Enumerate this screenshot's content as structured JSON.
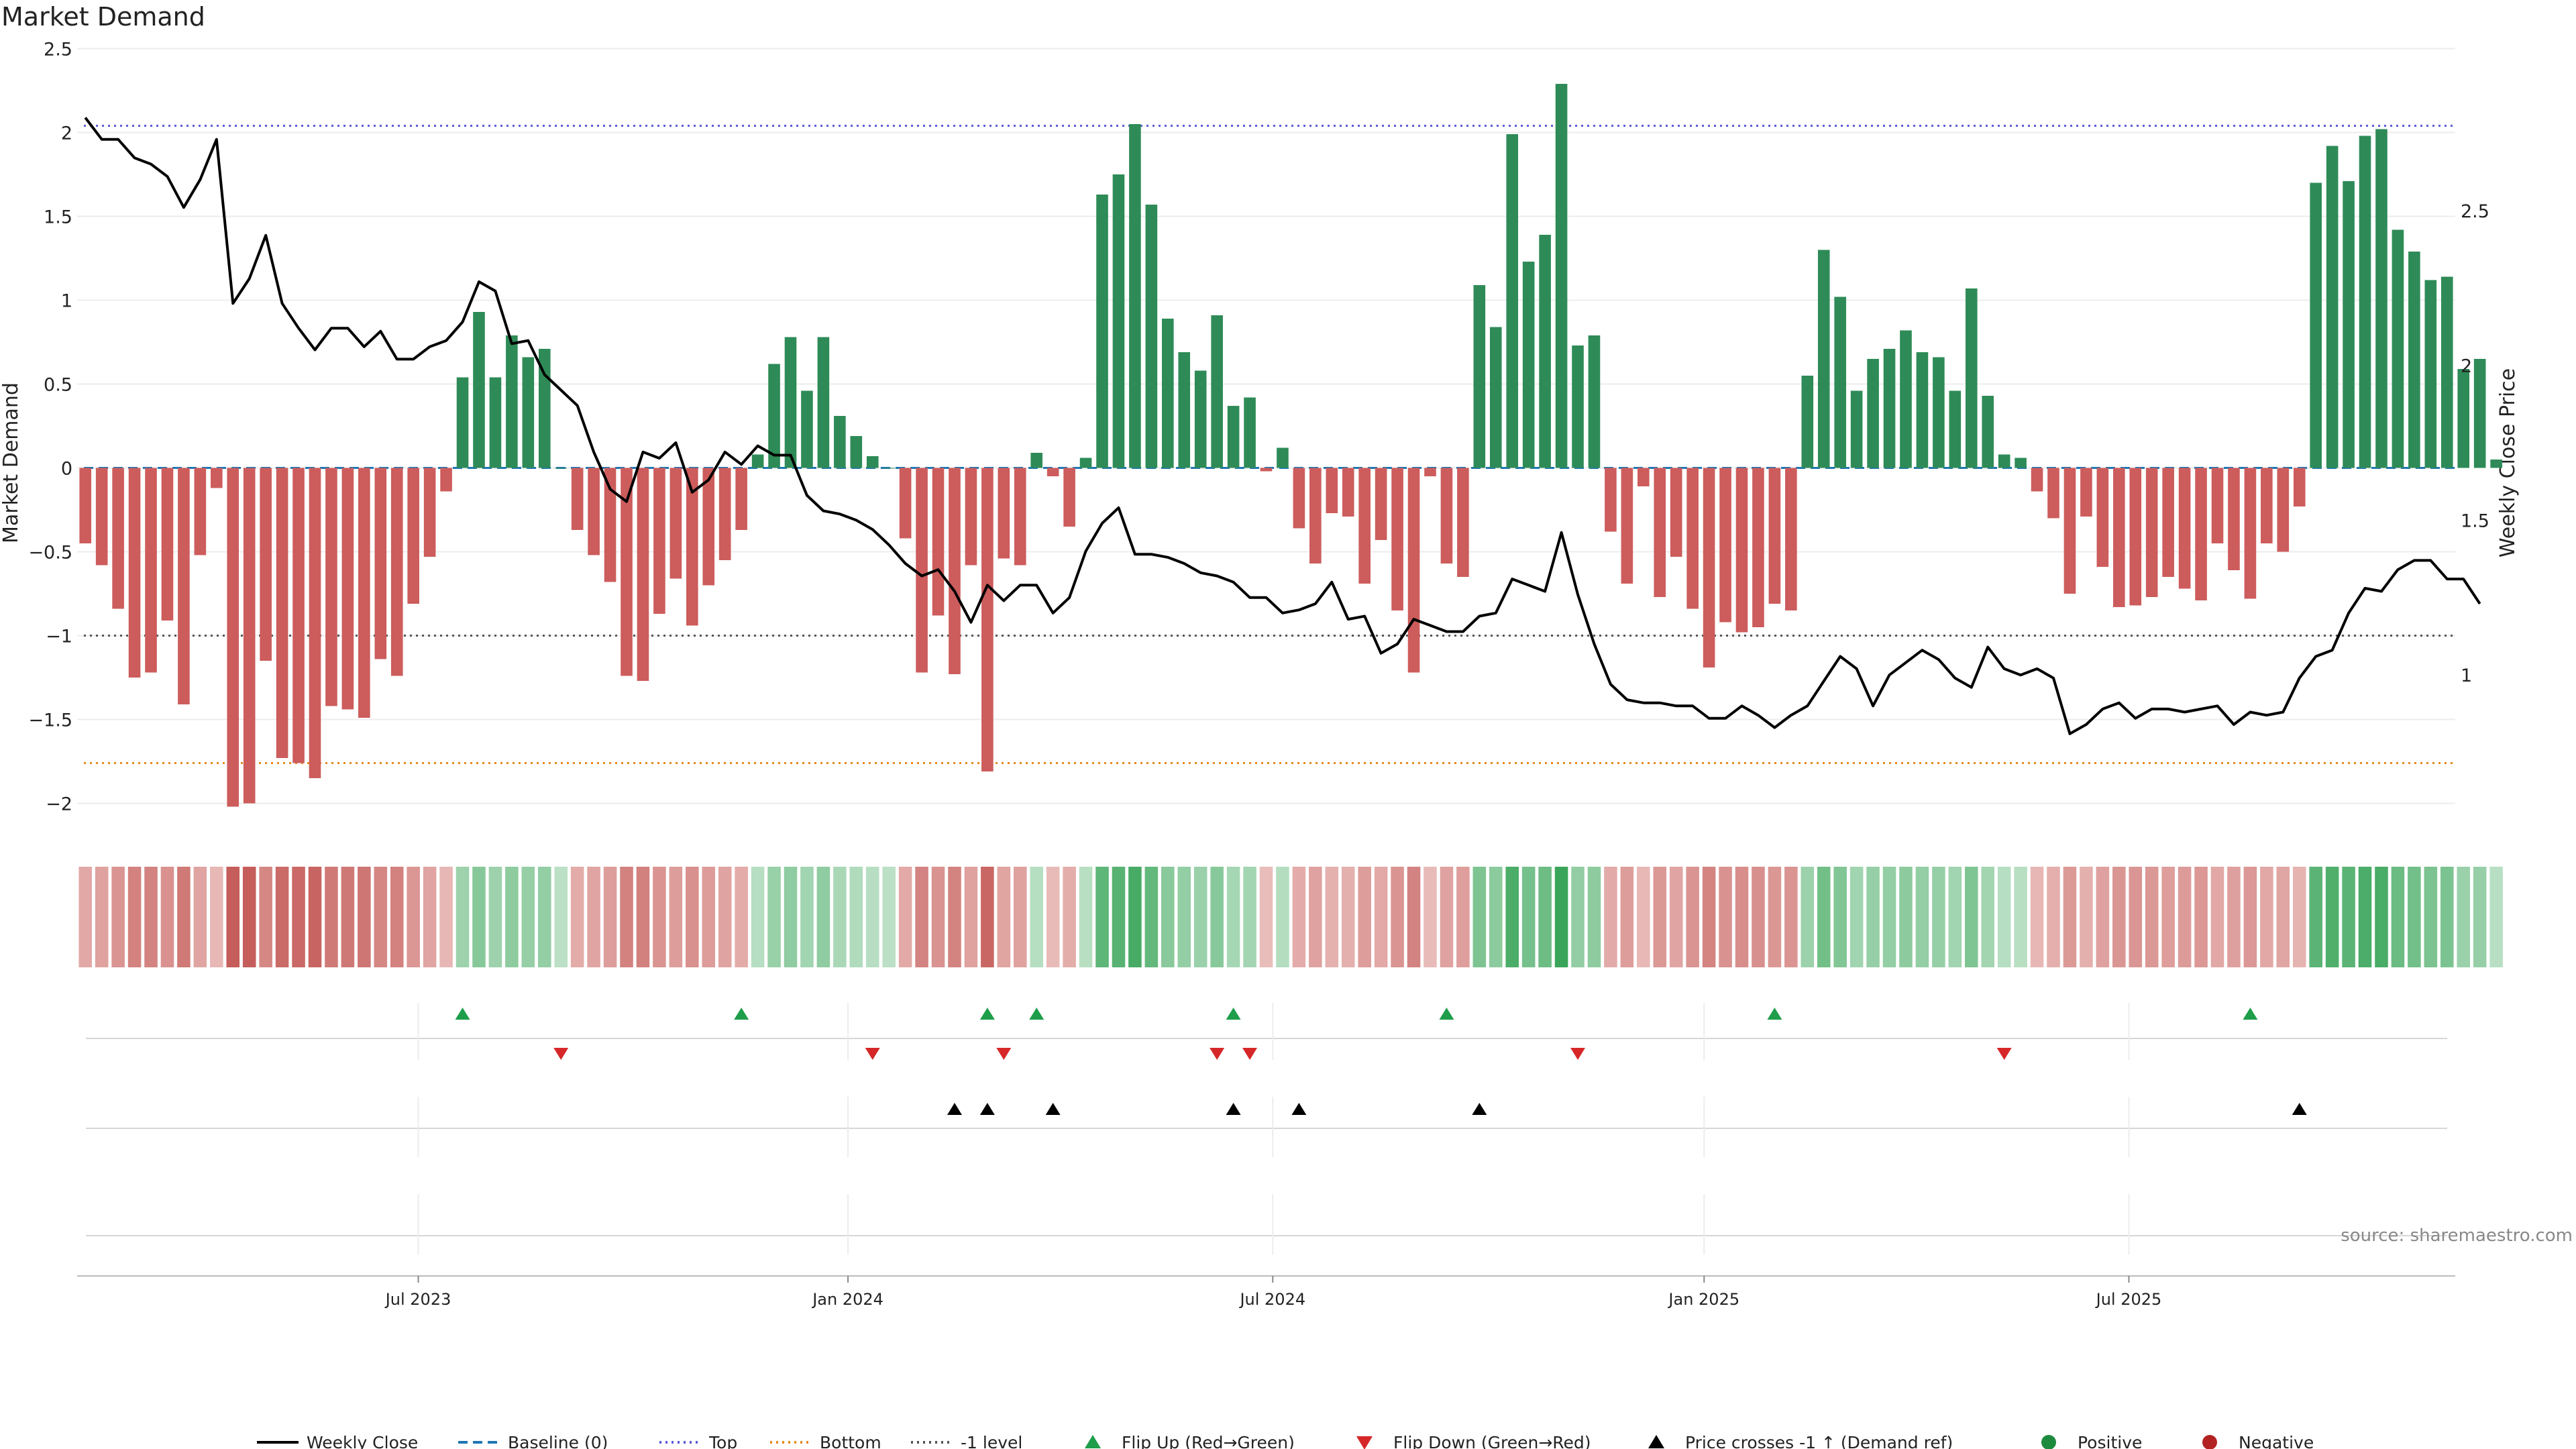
{
  "chart_data": {
    "type": "bar",
    "title": "Market Demand",
    "ylabel": "Market Demand",
    "y2label": "Weekly Close Price",
    "ylim": [
      -2.25,
      2.55
    ],
    "y2lim": [
      0.45,
      3.05
    ],
    "yticks": [
      -2,
      -1.5,
      -1,
      -0.5,
      0,
      0.5,
      1,
      1.5,
      2,
      2.5
    ],
    "ytick_labels": [
      "−2",
      "−1.5",
      "−1",
      "−0.5",
      "0",
      "0.5",
      "1",
      "1.5",
      "2",
      "2.5"
    ],
    "y2ticks": [
      1,
      1.5,
      2,
      2.5
    ],
    "y2tick_labels": [
      "1",
      "1.5",
      "2",
      "2.5"
    ],
    "x_count": 145,
    "xticks": [
      {
        "label": "Jul 2023",
        "index": 20.3
      },
      {
        "label": "Jan 2024",
        "index": 46.5
      },
      {
        "label": "Jul 2024",
        "index": 72.4
      },
      {
        "label": "Jan 2025",
        "index": 98.7
      },
      {
        "label": "Jul 2025",
        "index": 124.6
      }
    ],
    "reference_lines": {
      "top": 2.04,
      "bottom": -1.76,
      "minus_one": -1.0,
      "baseline": 0
    },
    "demand": [
      -0.45,
      -0.58,
      -0.84,
      -1.25,
      -1.22,
      -0.91,
      -1.41,
      -0.52,
      -0.12,
      -2.02,
      -2.0,
      -1.15,
      -1.73,
      -1.76,
      -1.85,
      -1.42,
      -1.44,
      -1.49,
      -1.14,
      -1.24,
      -0.81,
      -0.53,
      -0.14,
      0.54,
      0.93,
      0.54,
      0.79,
      0.66,
      0.71,
      0.0,
      -0.37,
      -0.52,
      -0.68,
      -1.24,
      -1.27,
      -0.87,
      -0.66,
      -0.94,
      -0.7,
      -0.55,
      -0.37,
      0.08,
      0.62,
      0.78,
      0.46,
      0.78,
      0.31,
      0.19,
      0.07,
      0.0,
      -0.42,
      -1.22,
      -0.88,
      -1.23,
      -0.58,
      -1.81,
      -0.54,
      -0.58,
      0.09,
      -0.05,
      -0.35,
      0.06,
      1.63,
      1.75,
      2.05,
      1.57,
      0.89,
      0.69,
      0.58,
      0.91,
      0.37,
      0.42,
      -0.02,
      0.12,
      -0.36,
      -0.57,
      -0.27,
      -0.29,
      -0.69,
      -0.43,
      -0.85,
      -1.22,
      -0.05,
      -0.57,
      -0.65,
      1.09,
      0.84,
      1.99,
      1.23,
      1.39,
      2.29,
      0.73,
      0.79,
      -0.38,
      -0.69,
      -0.11,
      -0.77,
      -0.53,
      -0.84,
      -1.19,
      -0.92,
      -0.98,
      -0.95,
      -0.81,
      -0.85,
      0.55,
      1.3,
      1.02,
      0.46,
      0.65,
      0.71,
      0.82,
      0.69,
      0.66,
      0.46,
      1.07,
      0.43,
      0.08,
      0.06,
      -0.14,
      -0.3,
      -0.75,
      -0.29,
      -0.59,
      -0.83,
      -0.82,
      -0.77,
      -0.65,
      -0.72,
      -0.79,
      -0.45,
      -0.61,
      -0.78,
      -0.45,
      -0.5,
      -0.23,
      1.7,
      1.92,
      1.71,
      1.98,
      2.02,
      1.42,
      1.29,
      1.12,
      1.14,
      0.59,
      0.65,
      0.05
    ],
    "weekly_close": [
      2.8,
      2.73,
      2.73,
      2.67,
      2.65,
      2.61,
      2.51,
      2.6,
      2.73,
      2.2,
      2.28,
      2.42,
      2.2,
      2.12,
      2.05,
      2.12,
      2.12,
      2.06,
      2.11,
      2.02,
      2.02,
      2.06,
      2.08,
      2.14,
      2.27,
      2.24,
      2.07,
      2.08,
      1.97,
      1.92,
      1.87,
      1.72,
      1.6,
      1.56,
      1.72,
      1.7,
      1.75,
      1.59,
      1.63,
      1.72,
      1.68,
      1.74,
      1.71,
      1.71,
      1.58,
      1.53,
      1.52,
      1.5,
      1.47,
      1.42,
      1.36,
      1.32,
      1.34,
      1.27,
      1.17,
      1.29,
      1.24,
      1.29,
      1.29,
      1.2,
      1.25,
      1.4,
      1.49,
      1.54,
      1.39,
      1.39,
      1.38,
      1.36,
      1.33,
      1.32,
      1.3,
      1.25,
      1.25,
      1.2,
      1.21,
      1.23,
      1.3,
      1.18,
      1.19,
      1.07,
      1.1,
      1.18,
      1.16,
      1.14,
      1.14,
      1.19,
      1.2,
      1.31,
      1.29,
      1.27,
      1.46,
      1.26,
      1.1,
      0.97,
      0.92,
      0.91,
      0.91,
      0.9,
      0.9,
      0.86,
      0.86,
      0.9,
      0.87,
      0.83,
      0.87,
      0.9,
      0.98,
      1.06,
      1.02,
      0.9,
      1.0,
      1.04,
      1.08,
      1.05,
      0.99,
      0.96,
      1.09,
      1.02,
      1.0,
      1.02,
      0.99,
      0.81,
      0.84,
      0.89,
      0.91,
      0.86,
      0.89,
      0.89,
      0.88,
      0.89,
      0.9,
      0.84,
      0.88,
      0.87,
      0.88,
      0.99,
      1.06,
      1.08,
      1.2,
      1.28,
      1.27,
      1.34,
      1.37,
      1.37,
      1.31,
      1.31,
      1.23
    ],
    "flip_up_indices": [
      23,
      40,
      55,
      58,
      70,
      83,
      103,
      132
    ],
    "flip_down_indices": [
      29,
      48,
      56,
      69,
      71,
      91,
      117
    ],
    "price_cross_indices": [
      53,
      55,
      59,
      70,
      74,
      85,
      135
    ],
    "legend": [
      {
        "label": "Weekly Close",
        "kind": "line",
        "color": "#000000"
      },
      {
        "label": "Baseline (0)",
        "kind": "dash",
        "color": "#1f77b4"
      },
      {
        "label": "Top",
        "kind": "dot",
        "color": "#5b5bd6"
      },
      {
        "label": "Bottom",
        "kind": "dot",
        "color": "#e58a1f"
      },
      {
        "label": "-1 level",
        "kind": "dot",
        "color": "#555555"
      },
      {
        "label": "Flip Up (Red→Green)",
        "kind": "tri-up",
        "color": "#1e9e4a"
      },
      {
        "label": "Flip Down (Green→Red)",
        "kind": "tri-down",
        "color": "#d62728"
      },
      {
        "label": "Price crosses -1 ↑ (Demand ref)",
        "kind": "tri-up",
        "color": "#000000"
      },
      {
        "label": "Positive",
        "kind": "dot-circle",
        "color": "#1e8a3e"
      },
      {
        "label": "Negative",
        "kind": "dot-circle",
        "color": "#b22222"
      }
    ],
    "source": "source: sharemaestro.com",
    "colors": {
      "positive": "#2e8b57",
      "negative": "#cd5c5c",
      "top": "#5b5bd6",
      "bottom": "#e58a1f",
      "minus_one": "#555555",
      "baseline": "#1f77b4",
      "flip_up": "#1e9e4a",
      "flip_down": "#d62728",
      "cross": "#000000"
    }
  }
}
